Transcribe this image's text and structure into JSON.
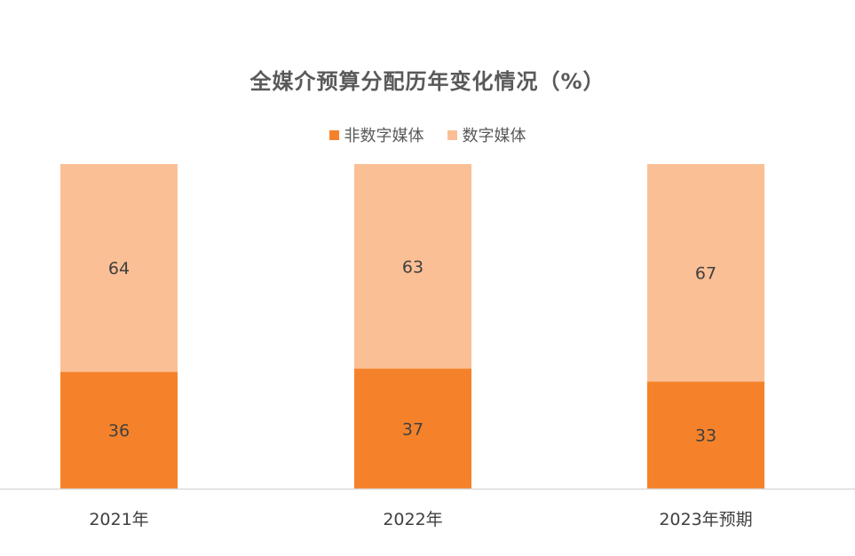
{
  "chart_data": {
    "type": "bar",
    "stacked": true,
    "title": "全媒介预算分配历年变化情况（%）",
    "categories": [
      "2021年",
      "2022年",
      "2023年预期"
    ],
    "series": [
      {
        "name": "非数字媒体",
        "values": [
          36,
          37,
          33
        ],
        "color": "#f5822a"
      },
      {
        "name": "数字媒体",
        "values": [
          64,
          63,
          67
        ],
        "color": "#fbbf96"
      }
    ],
    "ylim": [
      0,
      100
    ],
    "grid": false,
    "legend": "top-center"
  }
}
